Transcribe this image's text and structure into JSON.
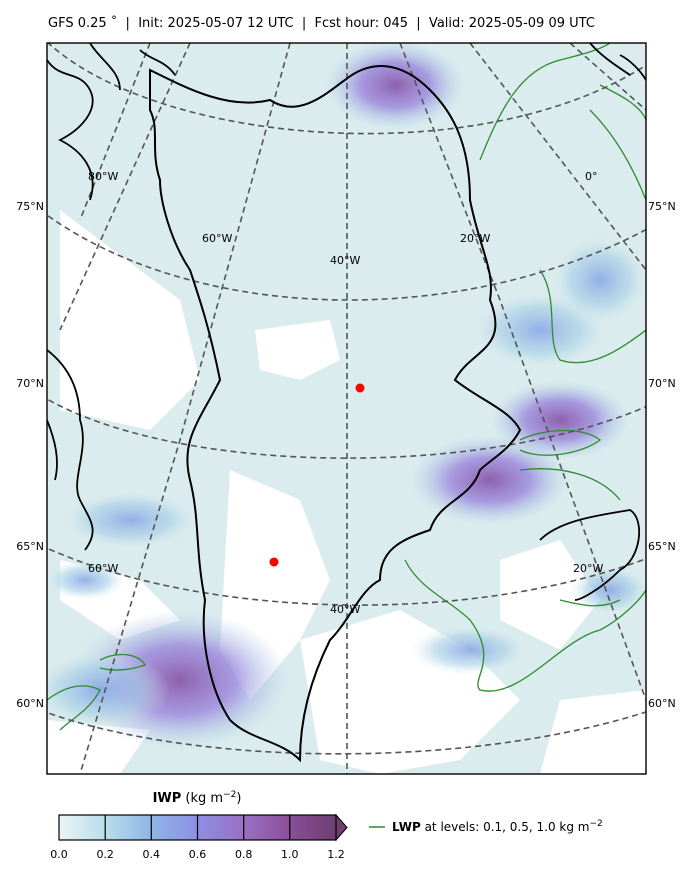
{
  "header": {
    "model": "GFS 0.25$^\\circ$",
    "title": "GFS 0.25 ° | Init: 2025-05-07 12 UTC | Fcst hour: 045 | Valid: 2025-05-09 09 UTC",
    "title_parts": [
      "GFS 0.25 ˚",
      "Init: 2025-05-07 12 UTC",
      "Fcst hour: 045",
      "Valid: 2025-05-09 09 UTC"
    ]
  },
  "map": {
    "lat_labels_left": [
      "75°N",
      "70°N",
      "65°N",
      "60°N"
    ],
    "lat_labels_right": [
      "75°N",
      "70°N",
      "65°N",
      "60°N"
    ],
    "lon_labels": [
      "80°W",
      "60°W",
      "40°W",
      "20°W",
      "0°",
      "60°W",
      "40°W",
      "20°W"
    ],
    "colors": {
      "coast": "#000000",
      "graticule": "#555555",
      "lwp_contour": "#2e8b2e",
      "marker": "#ff0000",
      "ice_light": "#dcecef",
      "ice_mid": "#9fc3e0",
      "ice_blue": "#7f9fe0",
      "ice_purple": "#8f6ac8",
      "ice_dark": "#7a4a90"
    }
  },
  "colorbar": {
    "label_bold": "IWP",
    "label_units": " (kg m",
    "label_exp": "−2",
    "label_close": ")",
    "ticks": [
      "0.0",
      "0.2",
      "0.4",
      "0.6",
      "0.8",
      "1.0",
      "1.2"
    ],
    "colors": [
      "#dff0f0",
      "#a8d0e6",
      "#8aaee6",
      "#9b86dc",
      "#9a62b4",
      "#85528f"
    ],
    "extend": "max"
  },
  "legend": {
    "label_bold": "LWP",
    "label_rest": " at levels: 0.1, 0.5, 1.0  kg m",
    "label_exp": "−2",
    "levels": [
      0.1,
      0.5,
      1.0
    ]
  }
}
